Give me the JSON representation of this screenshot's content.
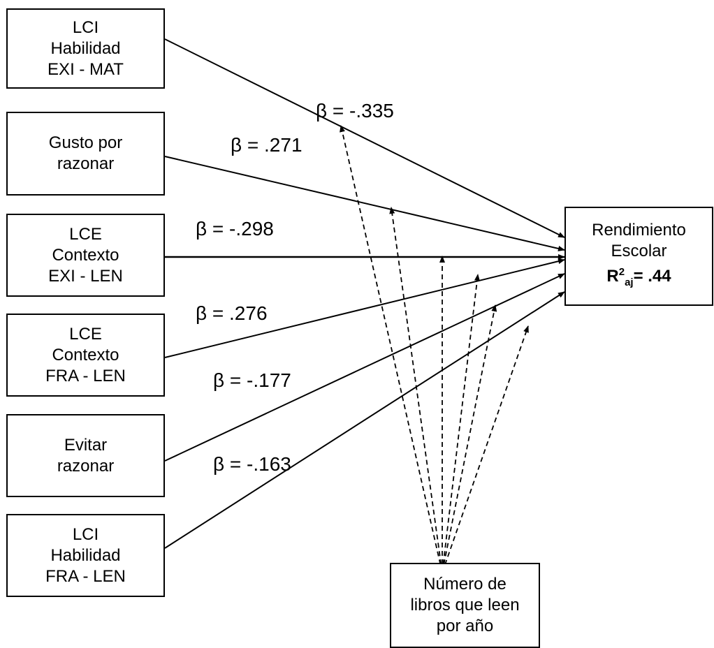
{
  "predictors": [
    {
      "lines": [
        "LCI",
        "Habilidad",
        "EXI - MAT"
      ],
      "beta": "β = -.335"
    },
    {
      "lines": [
        "Gusto por",
        "razonar"
      ],
      "beta": "β = .271"
    },
    {
      "lines": [
        "LCE",
        "Contexto",
        "EXI - LEN"
      ],
      "beta": "β = -.298"
    },
    {
      "lines": [
        "LCE",
        "Contexto",
        "FRA - LEN"
      ],
      "beta": "β = .276"
    },
    {
      "lines": [
        "Evitar",
        "razonar"
      ],
      "beta": "β = -.177"
    },
    {
      "lines": [
        "LCI",
        "Habilidad",
        "FRA - LEN"
      ],
      "beta": "β = -.163"
    }
  ],
  "outcome": {
    "lines": [
      "Rendimiento",
      "Escolar"
    ],
    "r2_letter": "R",
    "r2_sup": "2",
    "r2_sub": "aj",
    "r2_value": "= .44"
  },
  "moderator": {
    "lines": [
      "Número de",
      "libros que leen",
      "por año"
    ]
  }
}
